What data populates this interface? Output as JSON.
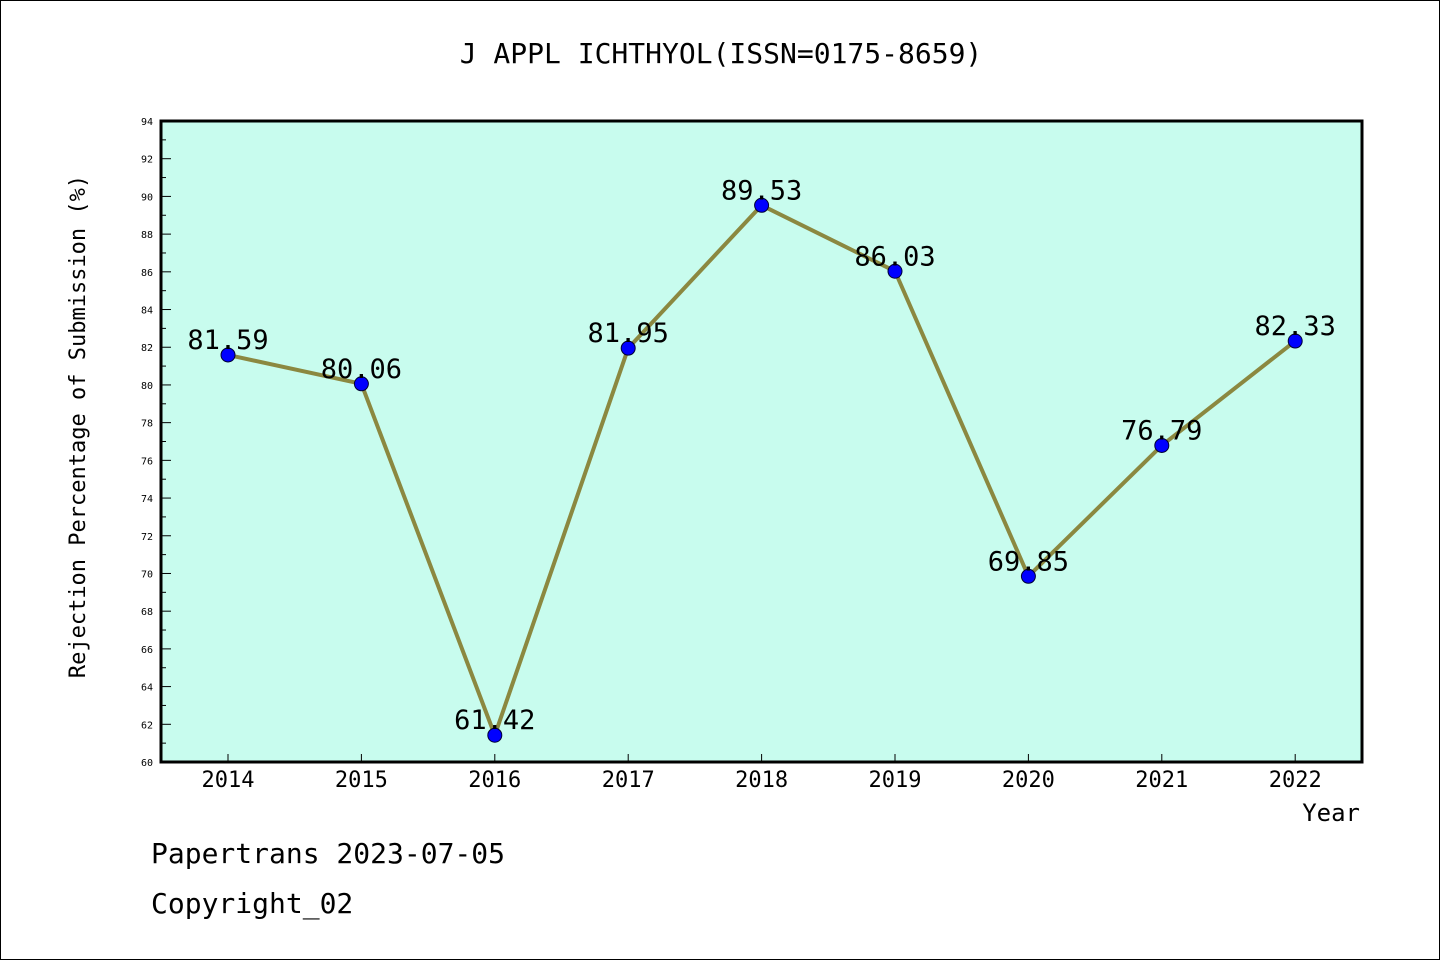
{
  "chart_data": {
    "type": "line",
    "title": "J APPL ICHTHYOL(ISSN=0175-8659)",
    "xlabel": "Year",
    "ylabel": "Rejection Percentage of Submission (%)",
    "ylim": [
      60,
      94
    ],
    "y_tick_step": 2,
    "categories": [
      "2014",
      "2015",
      "2016",
      "2017",
      "2018",
      "2019",
      "2020",
      "2021",
      "2022"
    ],
    "series": [
      {
        "values": [
          81.59,
          80.06,
          61.42,
          81.95,
          89.53,
          86.03,
          69.85,
          76.79,
          82.33
        ],
        "data_labels": [
          "81.59",
          "80.06",
          "61.42",
          "81.95",
          "89.53",
          "86.03",
          "69.85",
          "76.79",
          "82.33"
        ]
      }
    ],
    "grid": false,
    "colors": {
      "plot_background": "#c8fcee",
      "line": "#8b8840",
      "marker": "#0000ff"
    }
  },
  "footer": {
    "line1": "Papertrans 2023-07-05",
    "line2": "Copyright_02"
  }
}
